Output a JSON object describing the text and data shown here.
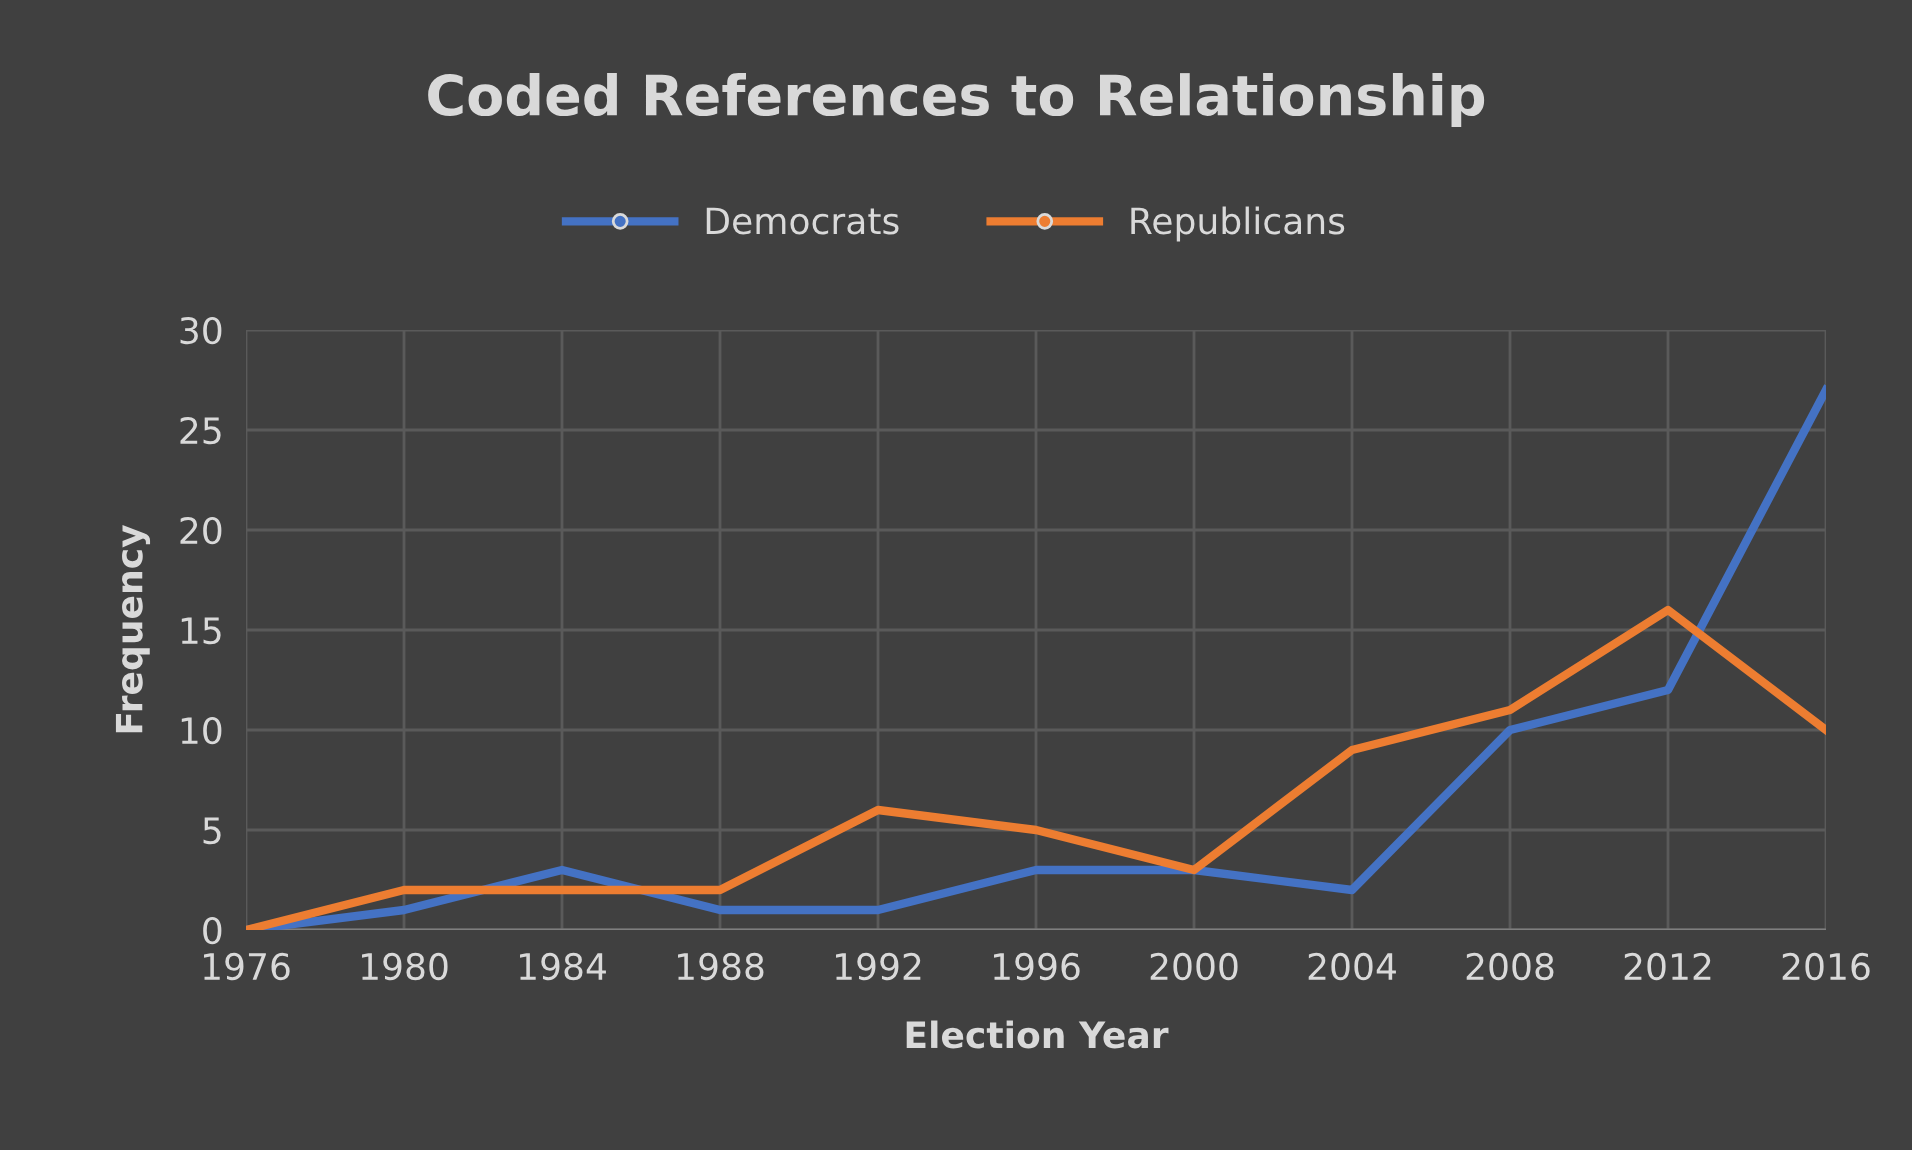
{
  "chart_data": {
    "type": "line",
    "title": "Coded References to Relationship",
    "xlabel": "Election Year",
    "ylabel": "Frequency",
    "categories": [
      "1976",
      "1980",
      "1984",
      "1988",
      "1992",
      "1996",
      "2000",
      "2004",
      "2008",
      "2012",
      "2016"
    ],
    "series": [
      {
        "name": "Democrats",
        "color": "#4472c4",
        "values": [
          0,
          1,
          3,
          1,
          1,
          3,
          3,
          2,
          10,
          12,
          27
        ]
      },
      {
        "name": "Republicans",
        "color": "#ed7d31",
        "values": [
          0,
          2,
          2,
          2,
          6,
          5,
          3,
          9,
          11,
          16,
          10
        ]
      }
    ],
    "ylim": [
      0,
      30
    ],
    "yticks": [
      0,
      5,
      10,
      15,
      20,
      25,
      30
    ],
    "grid": true,
    "legend": "top",
    "marker": "none",
    "line_style": "solid"
  }
}
